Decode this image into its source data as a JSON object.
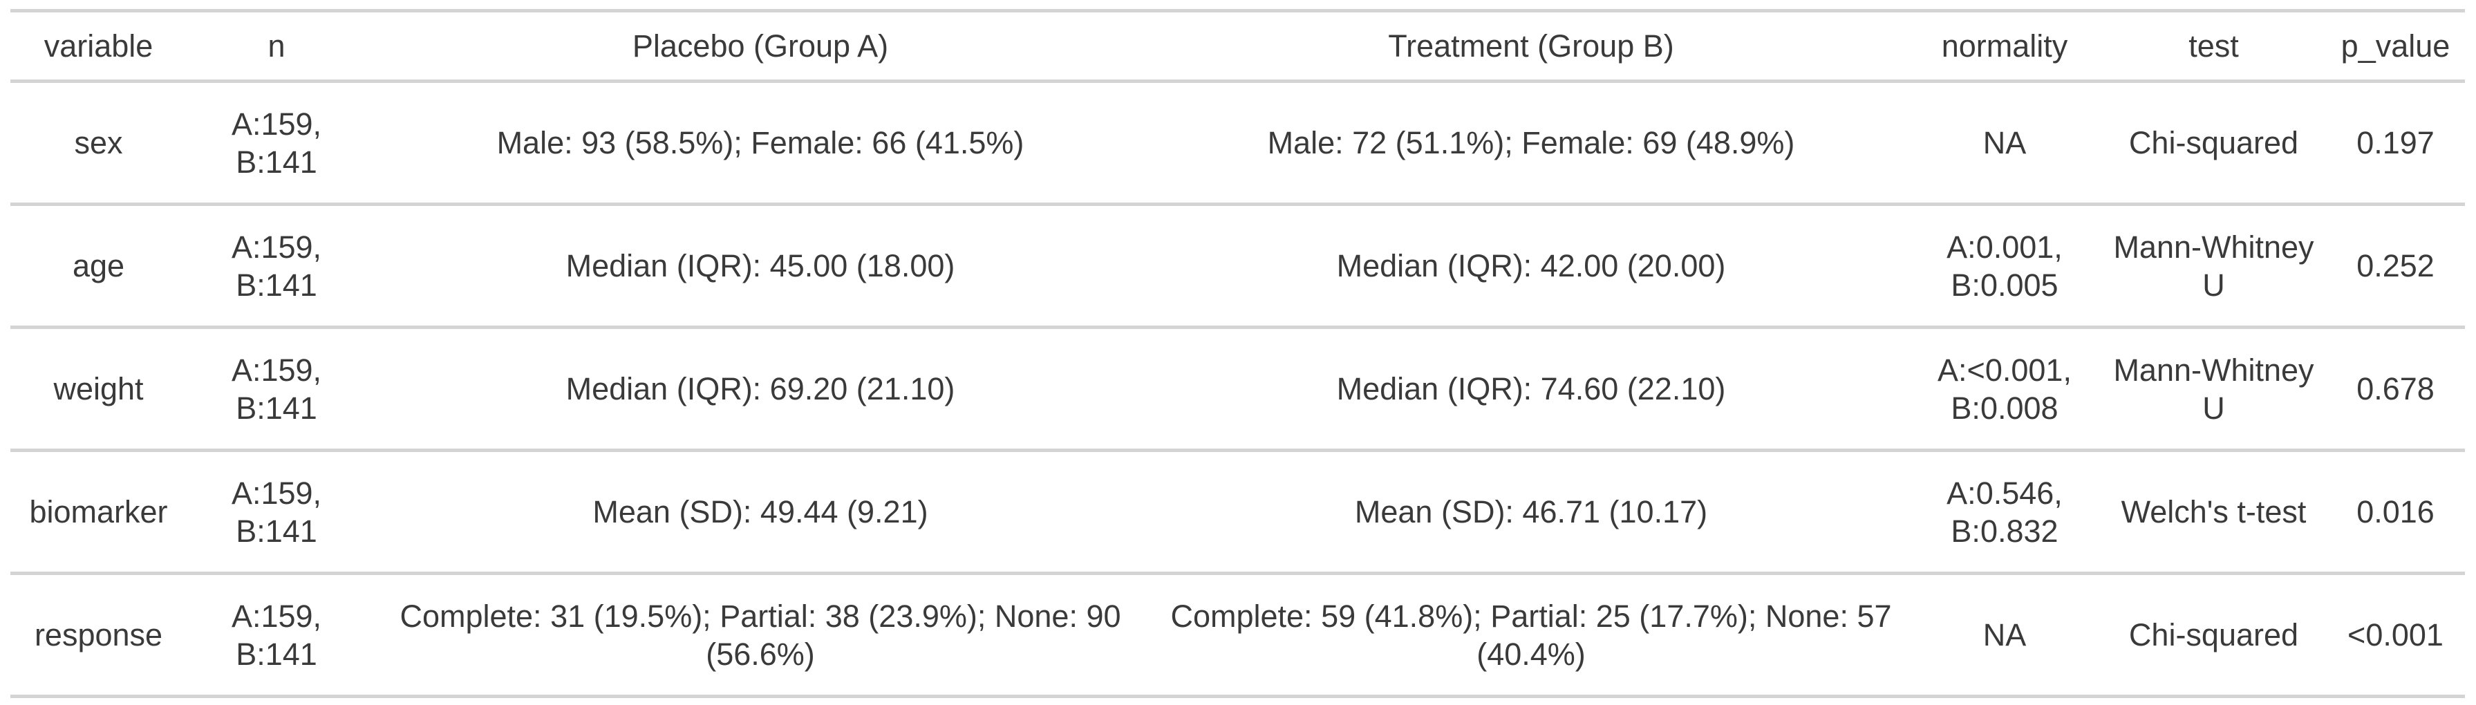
{
  "colors": {
    "background": "#ffffff",
    "text": "#3a3a3a",
    "border": "#d4d4d4"
  },
  "chart_data": {
    "type": "table",
    "columns": [
      "variable",
      "n",
      "Placebo (Group A)",
      "Treatment (Group B)",
      "normality",
      "test",
      "p_value"
    ],
    "rows": [
      [
        "sex",
        "A:159,\nB:141",
        "Male: 93 (58.5%); Female: 66 (41.5%)",
        "Male: 72 (51.1%); Female: 69 (48.9%)",
        "NA",
        "Chi-squared",
        "0.197"
      ],
      [
        "age",
        "A:159,\nB:141",
        "Median (IQR): 45.00 (18.00)",
        "Median (IQR): 42.00 (20.00)",
        "A:0.001,\nB:0.005",
        "Mann-Whitney U",
        "0.252"
      ],
      [
        "weight",
        "A:159,\nB:141",
        "Median (IQR): 69.20 (21.10)",
        "Median (IQR): 74.60 (22.10)",
        "A:<0.001,\nB:0.008",
        "Mann-Whitney U",
        "0.678"
      ],
      [
        "biomarker",
        "A:159,\nB:141",
        "Mean (SD): 49.44 (9.21)",
        "Mean (SD): 46.71 (10.17)",
        "A:0.546,\nB:0.832",
        "Welch's t-test",
        "0.016"
      ],
      [
        "response",
        "A:159,\nB:141",
        "Complete: 31 (19.5%); Partial: 38 (23.9%); None: 90 (56.6%)",
        "Complete: 59 (41.8%); Partial: 25 (17.7%); None: 57 (40.4%)",
        "NA",
        "Chi-squared",
        "<0.001"
      ]
    ]
  }
}
